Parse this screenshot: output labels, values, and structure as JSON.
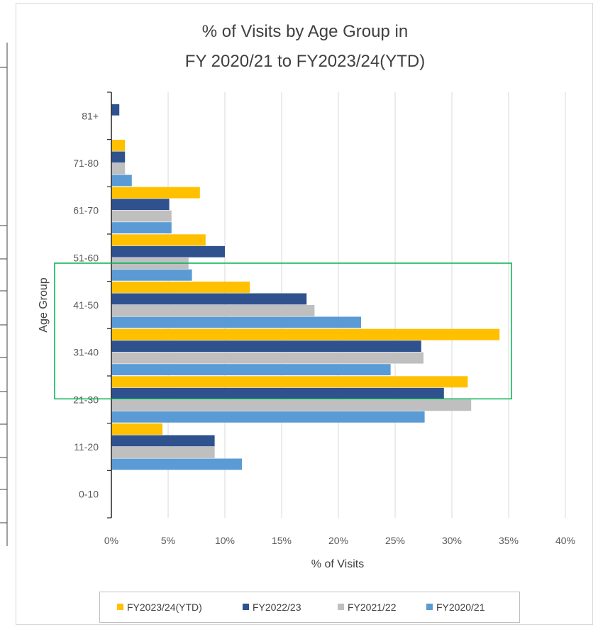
{
  "chart_data": {
    "type": "bar",
    "orientation": "horizontal",
    "title_lines": [
      "% of Visits by Age Group in",
      "FY 2020/21 to FY2023/24(YTD)"
    ],
    "xlabel": "% of Visits",
    "ylabel": "Age Group",
    "xlim": [
      0,
      40
    ],
    "x_ticks": [
      "0%",
      "5%",
      "10%",
      "15%",
      "20%",
      "25%",
      "30%",
      "35%",
      "40%"
    ],
    "categories": [
      "81+",
      "71-80",
      "61-70",
      "51-60",
      "41-50",
      "31-40",
      "21-30",
      "11-20",
      "0-10"
    ],
    "series": [
      {
        "name": "FY2023/24(YTD)",
        "color": "#FFC000",
        "values": [
          0,
          1.2,
          7.8,
          8.3,
          12.2,
          34.2,
          31.4,
          4.5,
          0
        ]
      },
      {
        "name": "FY2022/23",
        "color": "#2F528F",
        "values": [
          0.7,
          1.2,
          5.1,
          10.0,
          17.2,
          27.3,
          29.3,
          9.1,
          0
        ]
      },
      {
        "name": "FY2021/22",
        "color": "#BFBFBF",
        "values": [
          0,
          1.2,
          5.3,
          6.8,
          17.9,
          27.5,
          31.7,
          9.1,
          0
        ]
      },
      {
        "name": "FY2020/21",
        "color": "#5B9BD5",
        "values": [
          0,
          1.8,
          5.3,
          7.1,
          22.0,
          24.6,
          27.6,
          11.5,
          0
        ]
      }
    ],
    "grid": true,
    "legend_position": "bottom",
    "highlight_categories": [
      "41-50",
      "31-40",
      "21-30"
    ],
    "highlight_color": "#00B050"
  }
}
